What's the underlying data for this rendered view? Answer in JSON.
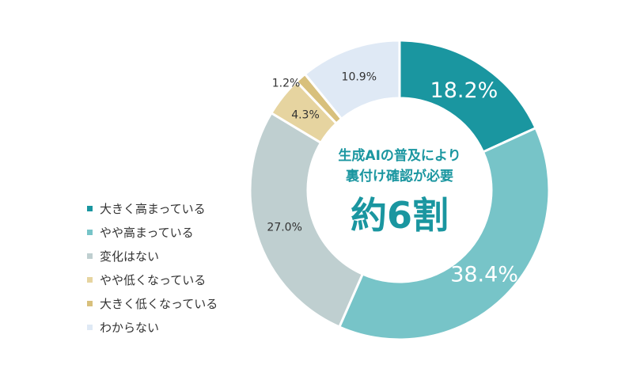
{
  "chart_data": {
    "type": "pie",
    "variant": "donut",
    "title": "",
    "center_text": {
      "line1": "生成AIの普及により",
      "line2": "裏付け確認が必要",
      "highlight": "約6割"
    },
    "slices": [
      {
        "label": "大きく高まっている",
        "value": 18.2,
        "value_label": "18.2%",
        "color": "#1a96a0",
        "label_style": "large-inside"
      },
      {
        "label": "やや高まっている",
        "value": 38.4,
        "value_label": "38.4%",
        "color": "#77c4c8",
        "label_style": "large-inside"
      },
      {
        "label": "変化はない",
        "value": 27.0,
        "value_label": "27.0%",
        "color": "#bfcfd0",
        "label_style": "small-inside"
      },
      {
        "label": "やや低くなっている",
        "value": 4.3,
        "value_label": "4.3%",
        "color": "#e6d4a0",
        "label_style": "small-inside"
      },
      {
        "label": "大きく低くなっている",
        "value": 1.2,
        "value_label": "1.2%",
        "color": "#d8c07c",
        "label_style": "small-outside"
      },
      {
        "label": "わからない",
        "value": 10.9,
        "value_label": "10.9%",
        "color": "#dfe9f5",
        "label_style": "small-inside"
      }
    ],
    "start_angle": "12 o'clock",
    "direction": "clockwise",
    "legend_position": "left",
    "colors": {
      "center_text": "#1a96a0",
      "value_label_dark": "#333333",
      "value_label_light": "#ffffff"
    }
  }
}
